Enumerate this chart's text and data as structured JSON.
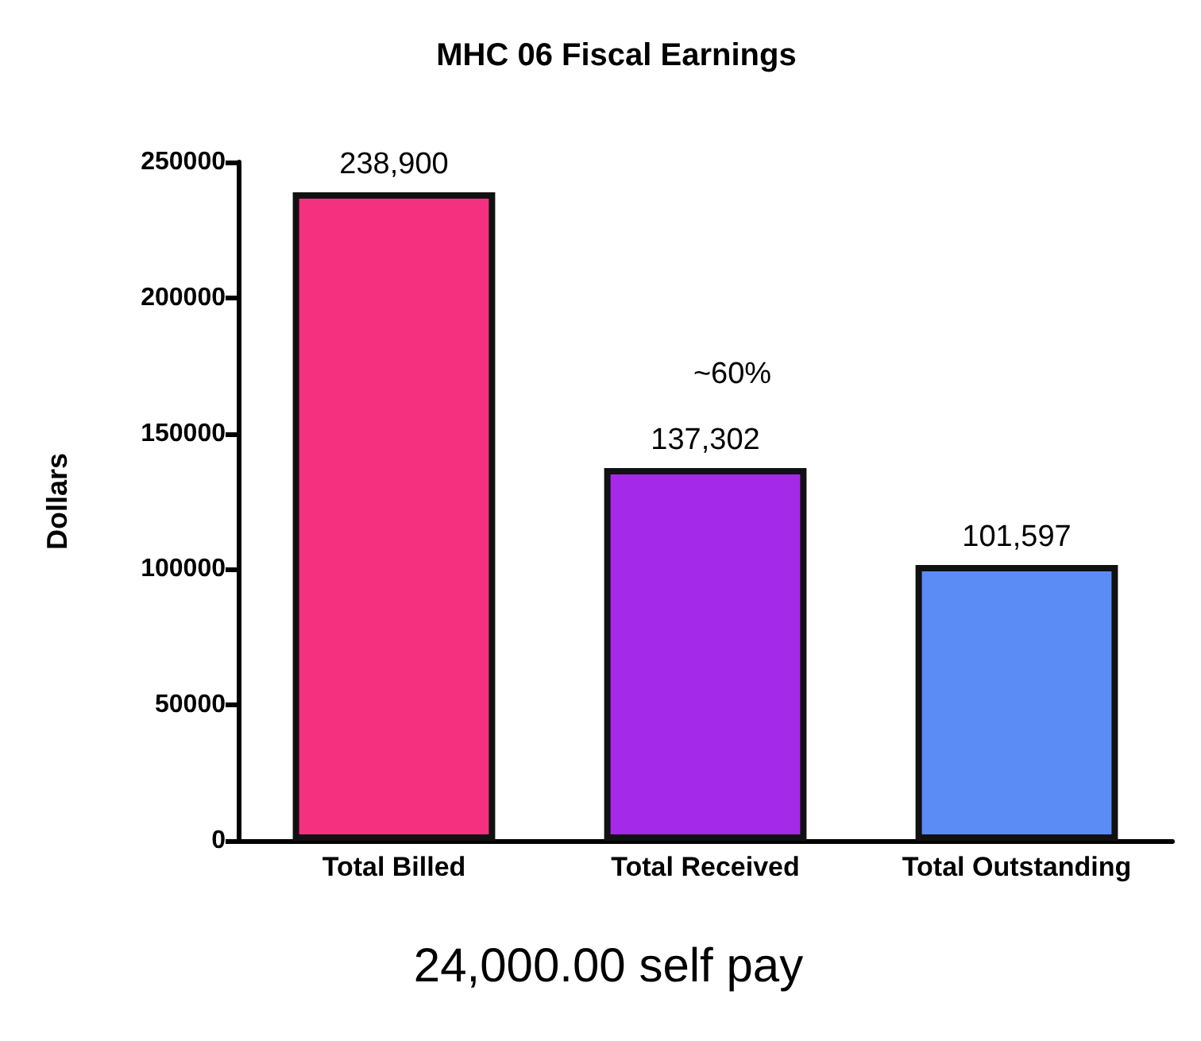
{
  "chart_data": {
    "type": "bar",
    "title": "MHC 06 Fiscal Earnings",
    "ylabel": "Dollars",
    "categories": [
      "Total Billed",
      "Total Received",
      "Total Outstanding"
    ],
    "values": [
      238900,
      137302,
      101597
    ],
    "colors": [
      "#f5307f",
      "#a529e8",
      "#5b8cf5"
    ],
    "value_labels": [
      "238,900",
      "137,302",
      "101,597"
    ],
    "ylim": [
      0,
      250000
    ],
    "yticks": [
      0,
      50000,
      100000,
      150000,
      200000,
      250000
    ],
    "grid": false,
    "annotations": [
      "~60%",
      "24,000.00 self pay"
    ]
  }
}
